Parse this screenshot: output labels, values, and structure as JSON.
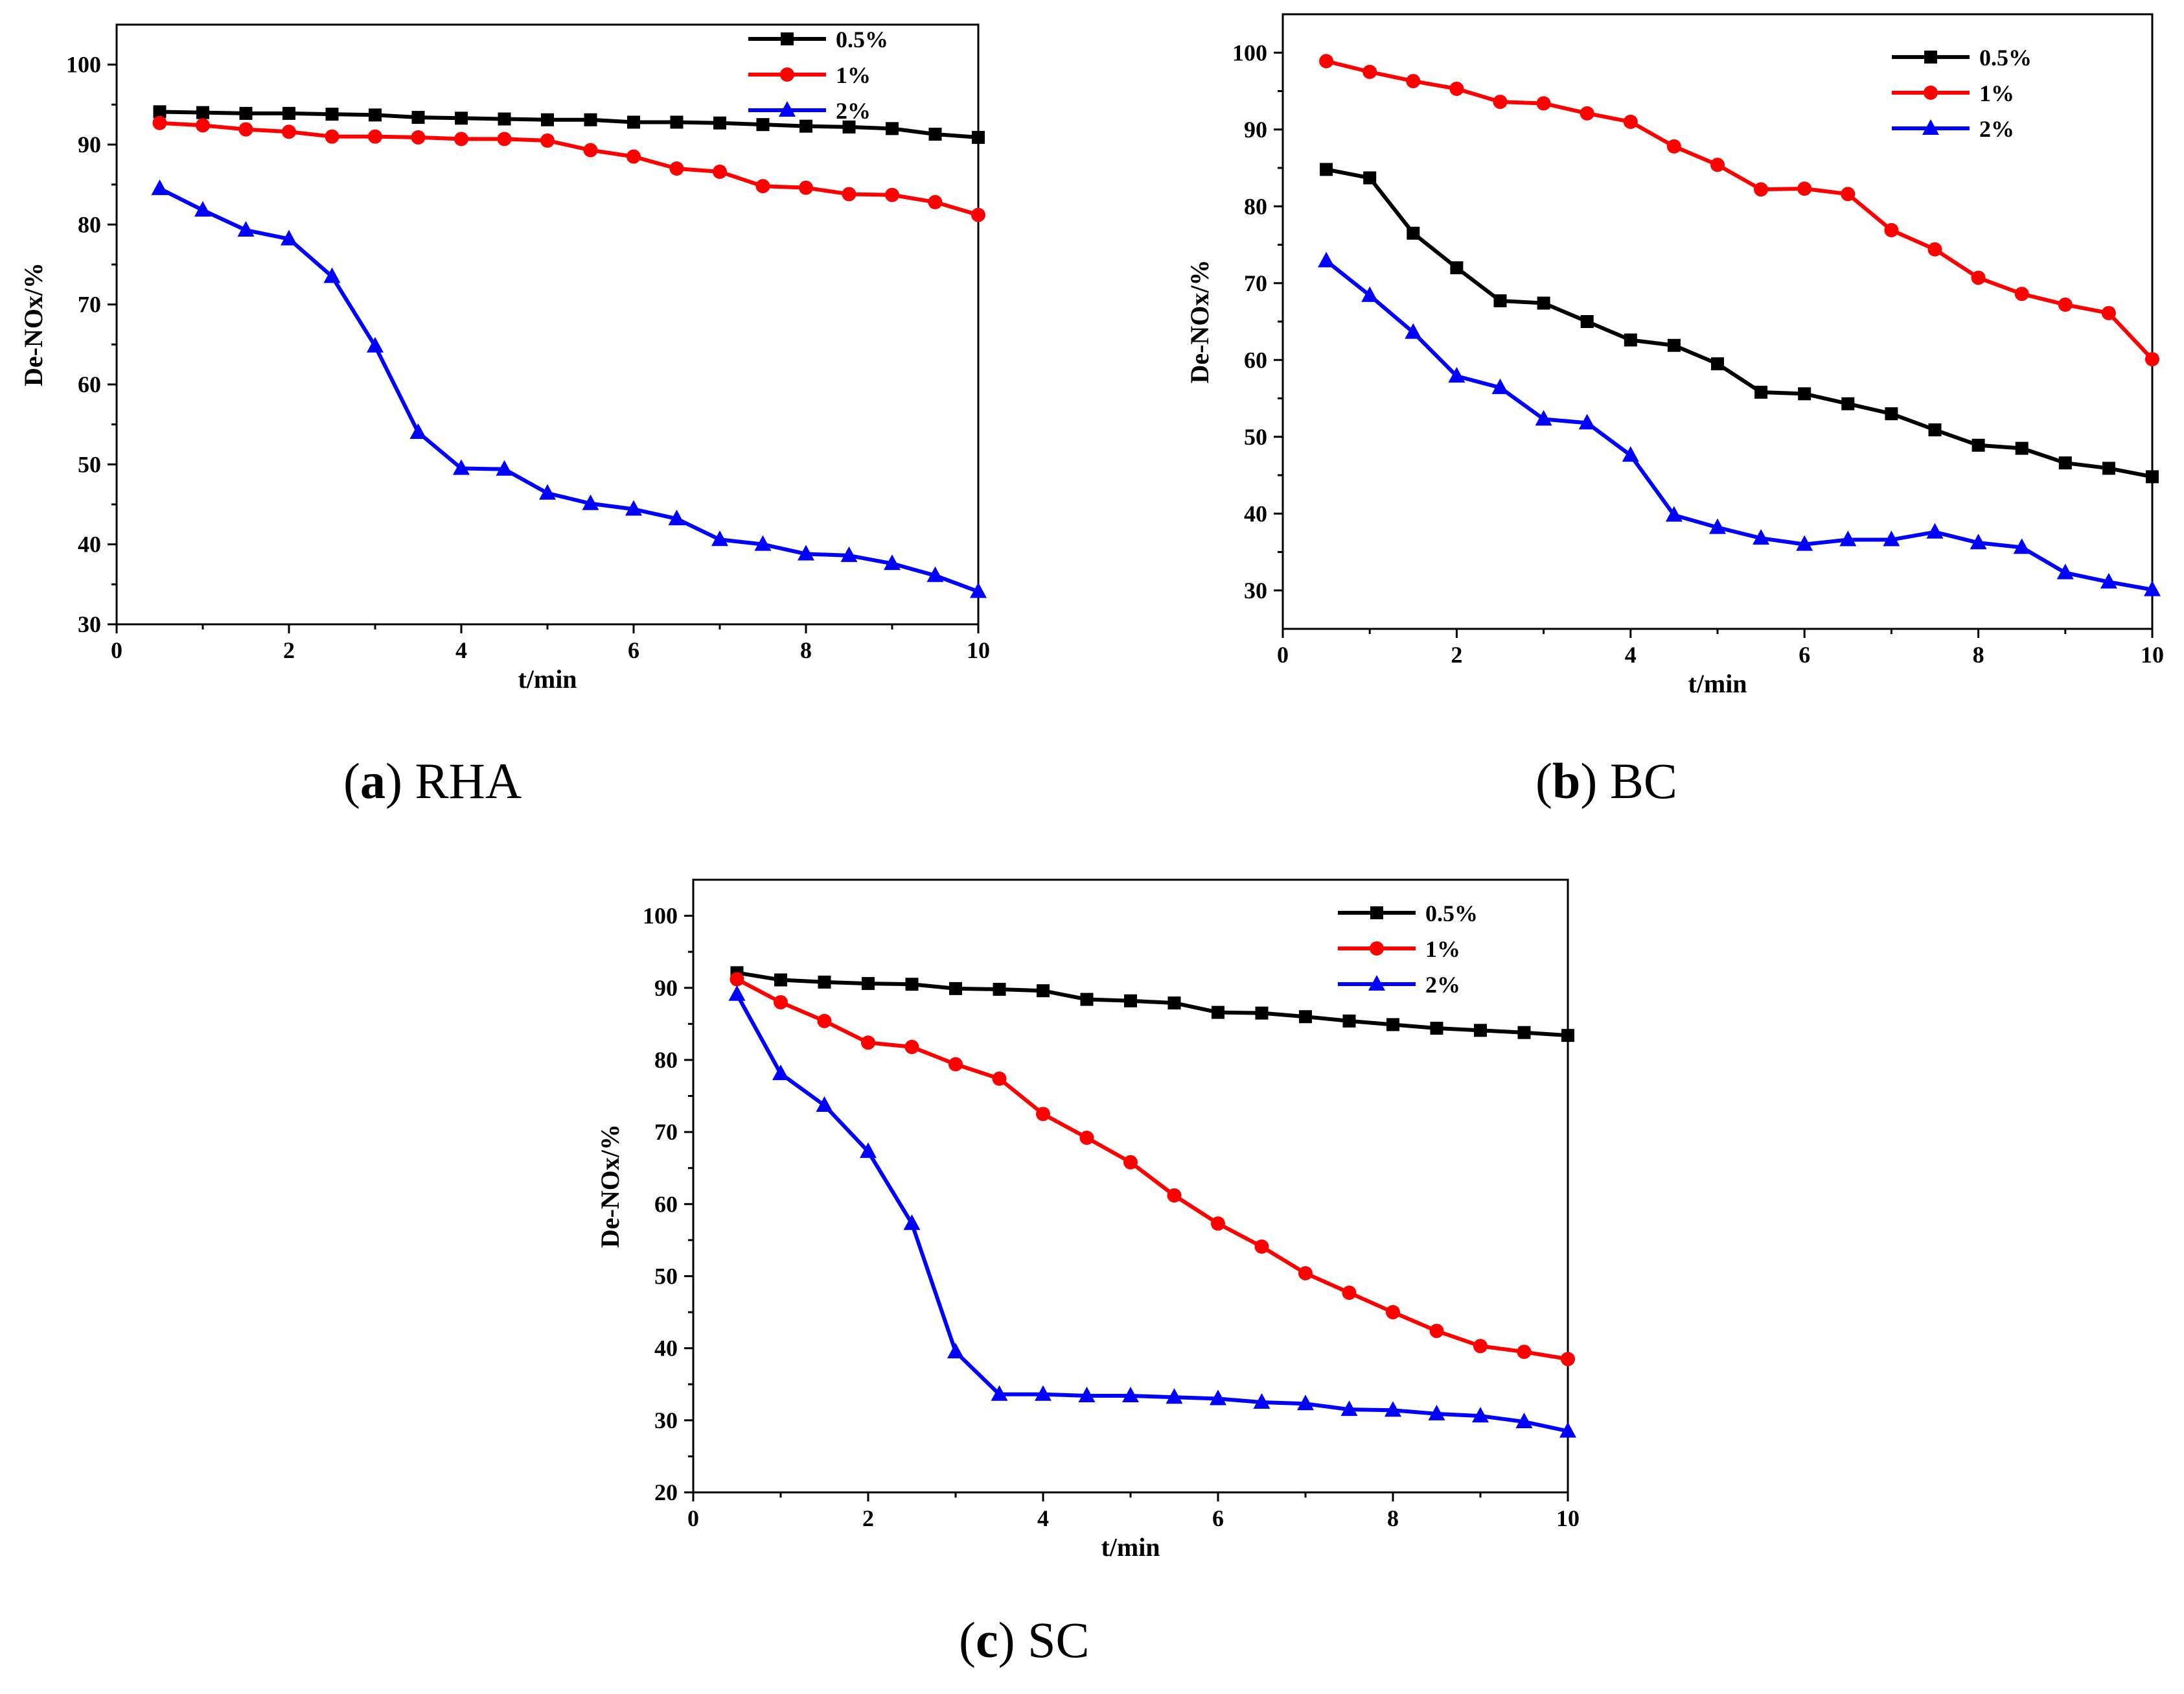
{
  "chart_data": [
    {
      "type": "line",
      "caption_letter": "a",
      "caption_name": "RHA",
      "xlabel": "t/min",
      "ylabel": "De-NOx/%",
      "xlim": [
        0,
        10
      ],
      "ylim": [
        30,
        105
      ],
      "xticks": [
        0,
        2,
        4,
        6,
        8,
        10
      ],
      "yticks": [
        30,
        40,
        50,
        60,
        70,
        80,
        90,
        100
      ],
      "legend_position": "top-right",
      "x": [
        0.5,
        1,
        1.5,
        2,
        2.5,
        3,
        3.5,
        4,
        4.5,
        5,
        5.5,
        6,
        6.5,
        7,
        7.5,
        8,
        8.5,
        9,
        9.5,
        10
      ],
      "series": [
        {
          "name": "0.5%",
          "color": "#000000",
          "marker": "square",
          "values": [
            94.1,
            94.0,
            93.9,
            93.9,
            93.8,
            93.7,
            93.4,
            93.3,
            93.2,
            93.1,
            93.1,
            92.8,
            92.8,
            92.7,
            92.5,
            92.3,
            92.2,
            92.0,
            91.3,
            90.9
          ]
        },
        {
          "name": "1%",
          "color": "#ff0000",
          "marker": "circle",
          "values": [
            92.7,
            92.4,
            91.9,
            91.6,
            91.0,
            91.0,
            90.9,
            90.7,
            90.7,
            90.5,
            89.3,
            88.5,
            87.0,
            86.6,
            84.8,
            84.6,
            83.8,
            83.7,
            82.8,
            81.2
          ]
        },
        {
          "name": "2%",
          "color": "#0000ff",
          "marker": "triangle",
          "values": [
            84.5,
            81.8,
            79.3,
            78.2,
            73.5,
            64.8,
            54.0,
            49.5,
            49.4,
            46.4,
            45.1,
            44.4,
            43.2,
            40.6,
            40.0,
            38.8,
            38.6,
            37.6,
            36.1,
            34.1
          ]
        }
      ]
    },
    {
      "type": "line",
      "caption_letter": "b",
      "caption_name": "BC",
      "xlabel": "t/min",
      "ylabel": "De-NOx/%",
      "xlim": [
        0,
        10
      ],
      "ylim": [
        25,
        105
      ],
      "xticks": [
        0,
        2,
        4,
        6,
        8,
        10
      ],
      "yticks": [
        30,
        40,
        50,
        60,
        70,
        80,
        90,
        100
      ],
      "legend_position": "top-right",
      "x": [
        0.5,
        1,
        1.5,
        2,
        2.5,
        3,
        3.5,
        4,
        4.5,
        5,
        5.5,
        6,
        6.5,
        7,
        7.5,
        8,
        8.5,
        9,
        9.5,
        10
      ],
      "series": [
        {
          "name": "0.5%",
          "color": "#000000",
          "marker": "square",
          "values": [
            84.8,
            83.7,
            76.5,
            72.0,
            67.7,
            67.4,
            65.0,
            62.6,
            61.9,
            59.5,
            55.8,
            55.6,
            54.3,
            53.0,
            50.9,
            48.9,
            48.5,
            46.6,
            45.9,
            44.8
          ]
        },
        {
          "name": "1%",
          "color": "#ff0000",
          "marker": "circle",
          "values": [
            98.9,
            97.5,
            96.3,
            95.3,
            93.6,
            93.4,
            92.1,
            91.0,
            87.8,
            85.4,
            82.2,
            82.3,
            81.6,
            76.9,
            74.4,
            70.7,
            68.6,
            67.2,
            66.1,
            60.1
          ]
        },
        {
          "name": "2%",
          "color": "#0000ff",
          "marker": "triangle",
          "values": [
            72.9,
            68.4,
            63.6,
            57.9,
            56.4,
            52.3,
            51.8,
            47.6,
            39.8,
            38.2,
            36.8,
            36.0,
            36.6,
            36.6,
            37.6,
            36.2,
            35.6,
            32.3,
            31.1,
            30.1
          ]
        }
      ]
    },
    {
      "type": "line",
      "caption_letter": "c",
      "caption_name": "SC",
      "xlabel": "t/min",
      "ylabel": "De-NOx/%",
      "xlim": [
        0,
        10
      ],
      "ylim": [
        20,
        105
      ],
      "xticks": [
        0,
        2,
        4,
        6,
        8,
        10
      ],
      "yticks": [
        20,
        30,
        40,
        50,
        60,
        70,
        80,
        90,
        100
      ],
      "legend_position": "top-right",
      "x": [
        0.5,
        1,
        1.5,
        2,
        2.5,
        3,
        3.5,
        4,
        4.5,
        5,
        5.5,
        6,
        6.5,
        7,
        7.5,
        8,
        8.5,
        9,
        9.5,
        10
      ],
      "series": [
        {
          "name": "0.5%",
          "color": "#000000",
          "marker": "square",
          "values": [
            92.1,
            91.1,
            90.8,
            90.6,
            90.5,
            89.9,
            89.8,
            89.6,
            88.4,
            88.2,
            87.9,
            86.6,
            86.5,
            86.0,
            85.4,
            84.9,
            84.4,
            84.1,
            83.8,
            83.4
          ]
        },
        {
          "name": "1%",
          "color": "#ff0000",
          "marker": "circle",
          "values": [
            91.2,
            88.0,
            85.4,
            82.4,
            81.8,
            79.4,
            77.4,
            72.5,
            69.2,
            65.8,
            61.2,
            57.3,
            54.1,
            50.4,
            47.7,
            45.0,
            42.4,
            40.3,
            39.5,
            38.5
          ]
        },
        {
          "name": "2%",
          "color": "#0000ff",
          "marker": "triangle",
          "values": [
            89.1,
            78.1,
            73.7,
            67.3,
            57.3,
            39.5,
            33.6,
            33.6,
            33.4,
            33.4,
            33.2,
            33.0,
            32.5,
            32.3,
            31.5,
            31.4,
            30.9,
            30.6,
            29.8,
            28.5
          ]
        }
      ]
    }
  ]
}
